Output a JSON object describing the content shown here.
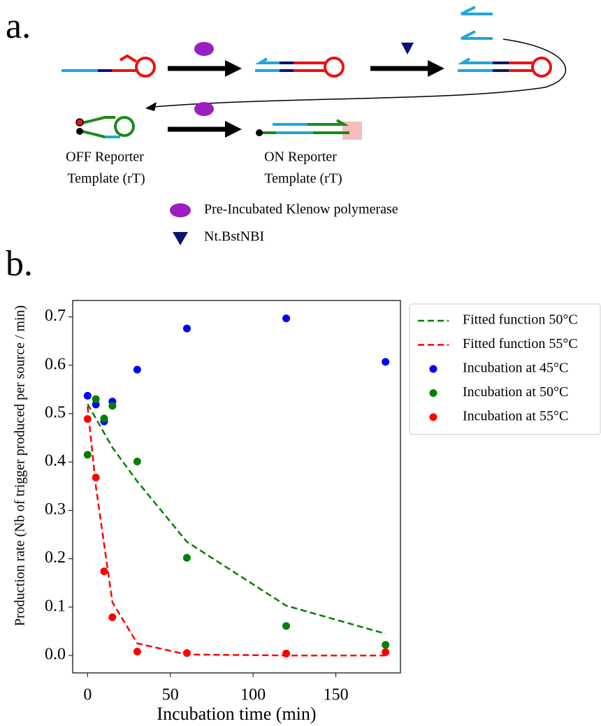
{
  "panel_a": {
    "label": "a.",
    "off_reporter": [
      "OFF Reporter",
      "Template (rT)"
    ],
    "on_reporter": [
      "ON Reporter",
      "Template (rT)"
    ],
    "legend": [
      "Pre-Incubated Klenow polymerase",
      "Nt.BstNBI"
    ]
  },
  "chart_data": {
    "type": "scatter",
    "panel_label": "b.",
    "x_label": "Incubation time (min)",
    "y_label": "Production rate (Nb of trigger produced per source / min)",
    "x": [
      0,
      5,
      10,
      15,
      30,
      60,
      120,
      180
    ],
    "series": [
      {
        "name": "Fitted function 50°C",
        "kind": "line",
        "dashed": true,
        "color": "#008000",
        "values": [
          0.52,
          0.49,
          0.46,
          0.43,
          0.36,
          0.235,
          0.103,
          0.045
        ]
      },
      {
        "name": "Fitted function 55°C",
        "kind": "line",
        "dashed": true,
        "color": "#ff0000",
        "values": [
          0.515,
          0.35,
          0.23,
          0.11,
          0.025,
          0.002,
          0,
          0
        ]
      },
      {
        "name": "Incubation at 45°C",
        "kind": "scatter",
        "color": "#0000ff",
        "values": [
          0.537,
          0.519,
          0.484,
          0.525,
          0.591,
          0.676,
          0.697,
          0.607
        ]
      },
      {
        "name": "Incubation at 50°C",
        "kind": "scatter",
        "color": "#008000",
        "values": [
          0.415,
          0.53,
          0.49,
          0.516,
          0.401,
          0.202,
          0.061,
          0.022
        ]
      },
      {
        "name": "Incubation at 55°C",
        "kind": "scatter",
        "color": "#ff0000",
        "values": [
          0.489,
          0.368,
          0.174,
          0.079,
          0.008,
          0.005,
          0.004,
          0.007
        ]
      }
    ],
    "xlim": [
      -9,
      189
    ],
    "ylim": [
      -0.036,
      0.734
    ],
    "xticks": [
      0,
      50,
      100,
      150
    ],
    "yticks": [
      {
        "value": 0,
        "label": "0.0"
      },
      0.1,
      0.2,
      0.3,
      0.4,
      0.5,
      0.6,
      0.7
    ],
    "legend": "outside-upper-right"
  }
}
